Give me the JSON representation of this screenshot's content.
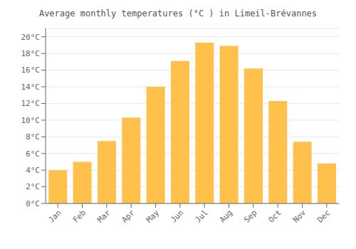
{
  "chart_data": {
    "type": "bar",
    "title": "Average monthly temperatures (°C ) in Limeil-Brévannes",
    "categories": [
      "Jan",
      "Feb",
      "Mar",
      "Apr",
      "May",
      "Jun",
      "Jul",
      "Aug",
      "Sep",
      "Oct",
      "Nov",
      "Dec"
    ],
    "values": [
      4.0,
      5.0,
      7.5,
      10.3,
      14.0,
      17.1,
      19.3,
      18.9,
      16.2,
      12.3,
      7.4,
      4.8
    ],
    "color": "#FFC04C",
    "ylim": [
      0,
      21
    ],
    "yticks": [
      {
        "value": 0,
        "label": "0°C"
      },
      {
        "value": 2,
        "label": "2°C"
      },
      {
        "value": 4,
        "label": "4°C"
      },
      {
        "value": 6,
        "label": "6°C"
      },
      {
        "value": 8,
        "label": "8°C"
      },
      {
        "value": 10,
        "label": "10°C"
      },
      {
        "value": 12,
        "label": "12°C"
      },
      {
        "value": 14,
        "label": "14°C"
      },
      {
        "value": 16,
        "label": "16°C"
      },
      {
        "value": 18,
        "label": "18°C"
      },
      {
        "value": 20,
        "label": "20°C"
      }
    ],
    "grid": true
  }
}
